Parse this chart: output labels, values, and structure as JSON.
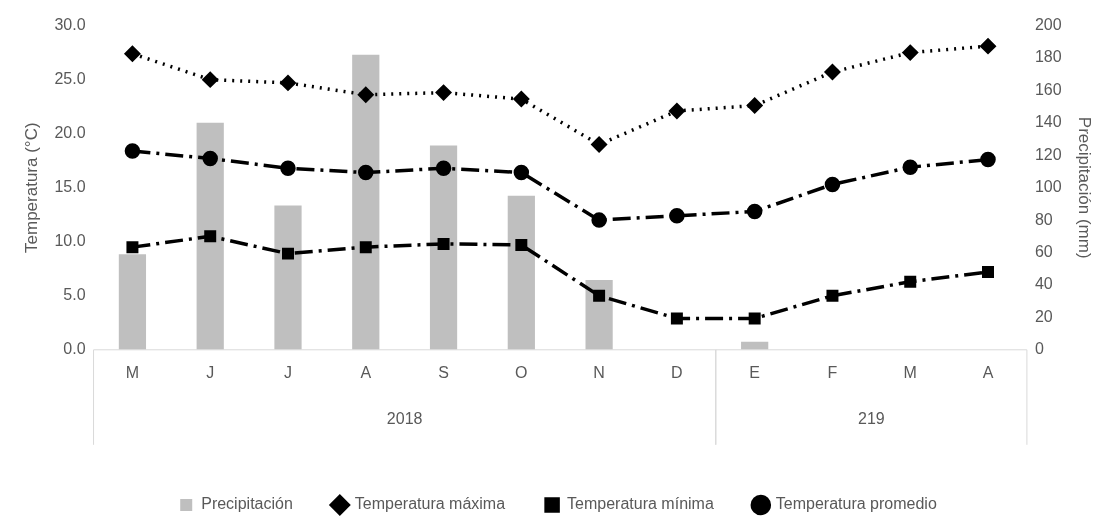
{
  "chart_data": {
    "type": "bar",
    "categories": [
      "M",
      "J",
      "J",
      "A",
      "S",
      "O",
      "N",
      "D",
      "E",
      "F",
      "M",
      "A"
    ],
    "ylabel": "Temperatura (°C)",
    "y2label": "Precipitación (mm)",
    "ylim": [
      0,
      30
    ],
    "yticks": [
      {
        "value": 0,
        "label": "0.0"
      },
      {
        "value": 5,
        "label": "5.0"
      },
      {
        "value": 10,
        "label": "10.0"
      },
      {
        "value": 15,
        "label": "15.0"
      },
      {
        "value": 20,
        "label": "20.0"
      },
      {
        "value": 25,
        "label": "25.0"
      },
      {
        "value": 30,
        "label": "30.0"
      }
    ],
    "y2lim": [
      0,
      200
    ],
    "y2ticks": [
      0,
      20,
      40,
      60,
      80,
      100,
      120,
      140,
      160,
      180,
      200
    ],
    "grid": false,
    "legend": "bottom",
    "annotations": [
      "2018",
      "219"
    ],
    "series": [
      {
        "name": "Precipitación",
        "axis": "y2",
        "color": "#bfbfbf",
        "values": [
          59,
          140,
          89,
          182,
          126,
          95,
          43,
          0,
          5,
          0,
          0,
          0
        ]
      },
      {
        "name": "Temperatura máxima",
        "type": "line",
        "color": "#000000",
        "marker": "diamond",
        "line_style": "dotted",
        "values": [
          27.4,
          25.0,
          24.7,
          23.6,
          23.8,
          23.2,
          19.0,
          22.1,
          22.6,
          25.7,
          27.5,
          28.1
        ]
      },
      {
        "name": "Temperatura mínima",
        "type": "line",
        "color": "#000000",
        "marker": "square",
        "line_style": "dashed",
        "values": [
          9.5,
          10.5,
          8.9,
          9.5,
          9.8,
          9.7,
          5.0,
          2.9,
          2.9,
          5.0,
          6.3,
          7.2
        ]
      },
      {
        "name": "Temperatura promedio",
        "type": "line",
        "color": "#000000",
        "marker": "circle",
        "line_style": "dashed",
        "values": [
          18.4,
          17.7,
          16.8,
          16.4,
          16.8,
          16.4,
          12.0,
          12.4,
          12.8,
          15.3,
          16.9,
          17.6
        ]
      }
    ]
  }
}
